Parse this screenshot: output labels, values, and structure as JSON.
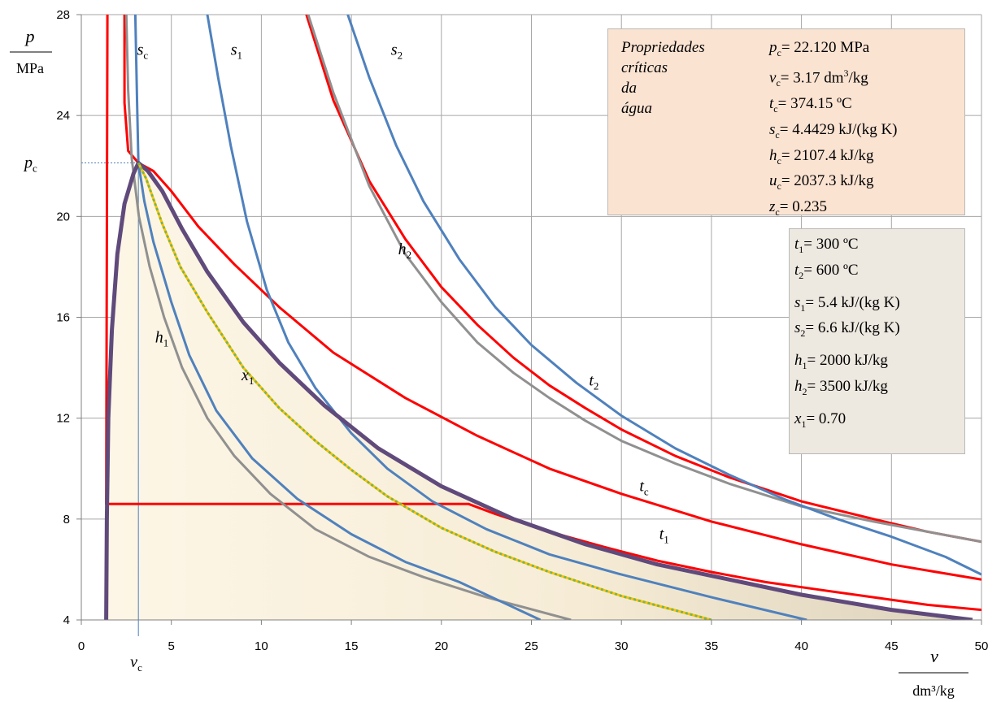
{
  "chart_data": {
    "type": "line",
    "title": "",
    "xaxis": {
      "label": "v",
      "unit": "dm³/kg",
      "range": [
        0,
        50
      ],
      "ticks": [
        "0",
        "5",
        "10",
        "15",
        "20",
        "25",
        "30",
        "35",
        "40",
        "45",
        "50"
      ],
      "extra_tick": "v_c"
    },
    "yaxis": {
      "label": "p",
      "unit": "MPa",
      "range": [
        4,
        28
      ],
      "ticks": [
        "4",
        "8",
        "12",
        "16",
        "20",
        "24",
        "28"
      ],
      "extra_tick": "p_c"
    },
    "grid": true,
    "series": [
      {
        "name": "saturation dome",
        "kind": "dome",
        "color": "#604a7b",
        "x": [
          1.38,
          1.42,
          1.5,
          1.7,
          2.0,
          2.4,
          2.9,
          3.17,
          3.7,
          4.5,
          5.6,
          7,
          9,
          11,
          13.5,
          16.5,
          20,
          24,
          28,
          32,
          36,
          40,
          45,
          49.5
        ],
        "y": [
          4.0,
          8.0,
          12,
          15.5,
          18.5,
          20.5,
          21.7,
          22.12,
          21.8,
          21.0,
          19.5,
          17.8,
          15.8,
          14.2,
          12.5,
          10.8,
          9.3,
          8.0,
          7.0,
          6.2,
          5.6,
          5.0,
          4.4,
          4.0
        ]
      },
      {
        "name": "t1",
        "kind": "isotherm",
        "color": "#ff0000",
        "x": [
          1.45,
          1.4,
          1.38,
          21.5,
          23,
          26,
          29,
          32,
          35,
          38,
          41,
          44,
          47,
          50
        ],
        "y": [
          28,
          14,
          8.6,
          8.6,
          8.2,
          7.5,
          6.9,
          6.35,
          5.9,
          5.5,
          5.2,
          4.9,
          4.6,
          4.4
        ]
      },
      {
        "name": "tc",
        "kind": "isotherm",
        "color": "#ff0000",
        "x": [
          2.4,
          2.4,
          2.6,
          3.17,
          4,
          5,
          6.5,
          8.5,
          11,
          14,
          18,
          22,
          26,
          30,
          35,
          40,
          45,
          50
        ],
        "y": [
          28,
          24.5,
          22.6,
          22.12,
          21.8,
          21.0,
          19.6,
          18.1,
          16.4,
          14.6,
          12.8,
          11.3,
          10.0,
          9.0,
          7.9,
          7.0,
          6.2,
          5.6
        ]
      },
      {
        "name": "t2",
        "kind": "isotherm",
        "color": "#ff0000",
        "x": [
          12.5,
          14,
          16,
          18,
          20,
          22,
          24,
          26,
          28,
          30,
          33,
          36,
          40,
          44,
          47,
          50
        ],
        "y": [
          28,
          24.6,
          21.4,
          19.1,
          17.2,
          15.7,
          14.4,
          13.3,
          12.4,
          11.55,
          10.5,
          9.65,
          8.7,
          8.0,
          7.5,
          7.1
        ]
      },
      {
        "name": "sc",
        "kind": "isentrope",
        "color": "#4f81bd",
        "x": [
          3.0,
          3.1,
          3.17,
          3.5,
          4,
          5,
          6,
          7.5,
          9.5,
          12,
          15,
          18,
          21,
          25.5
        ],
        "y": [
          28,
          24.5,
          22.12,
          20.6,
          19.0,
          16.6,
          14.5,
          12.3,
          10.4,
          8.8,
          7.4,
          6.3,
          5.5,
          4.0
        ]
      },
      {
        "name": "s1",
        "kind": "isentrope",
        "color": "#4f81bd",
        "x": [
          7.0,
          7.6,
          8.3,
          9.2,
          10.3,
          11.5,
          13,
          15,
          17,
          19.5,
          22.5,
          26,
          30,
          35,
          40.3
        ],
        "y": [
          28,
          25.5,
          22.8,
          19.8,
          17.1,
          15.0,
          13.2,
          11.4,
          10.0,
          8.7,
          7.6,
          6.6,
          5.8,
          4.9,
          4.0
        ]
      },
      {
        "name": "s2",
        "kind": "isentrope",
        "color": "#4f81bd",
        "x": [
          14.8,
          16,
          17.5,
          19,
          21,
          23,
          25,
          27.5,
          30,
          33,
          36,
          39,
          42,
          45,
          48,
          50
        ],
        "y": [
          28,
          25.5,
          22.8,
          20.6,
          18.3,
          16.4,
          14.9,
          13.4,
          12.1,
          10.8,
          9.75,
          8.8,
          8.0,
          7.3,
          6.5,
          5.8
        ]
      },
      {
        "name": "h1",
        "kind": "isenthalp",
        "color": "#909090",
        "x": [
          2.5,
          2.6,
          2.8,
          3.2,
          3.8,
          4.6,
          5.6,
          7,
          8.5,
          10.5,
          13,
          16,
          19,
          22.5,
          27.2
        ],
        "y": [
          28,
          25,
          22.3,
          20.0,
          18.0,
          16.0,
          14.0,
          12.0,
          10.5,
          9.0,
          7.6,
          6.5,
          5.7,
          4.9,
          4.0
        ]
      },
      {
        "name": "h2",
        "kind": "isenthalp",
        "color": "#909090",
        "x": [
          12.6,
          14,
          16,
          18,
          20,
          22,
          24,
          26,
          28,
          30,
          33,
          36,
          40,
          44,
          47,
          50
        ],
        "y": [
          28,
          24.9,
          21.2,
          18.5,
          16.6,
          15.0,
          13.8,
          12.8,
          11.9,
          11.1,
          10.2,
          9.4,
          8.5,
          7.9,
          7.5,
          7.1
        ]
      },
      {
        "name": "x1",
        "kind": "quality",
        "color": "#7ab648",
        "x": [
          3.17,
          3.6,
          4.5,
          5.5,
          7,
          9,
          11,
          13,
          15,
          17,
          20,
          23,
          26,
          30,
          35
        ],
        "y": [
          22.12,
          21.5,
          19.7,
          18.0,
          16.2,
          14.0,
          12.4,
          11.1,
          9.95,
          8.9,
          7.65,
          6.7,
          5.9,
          4.95,
          4.0
        ]
      }
    ],
    "curve_labels": [
      {
        "text": "s",
        "sub": "c",
        "x": 3.1,
        "y": 26.4
      },
      {
        "text": "s",
        "sub": "1",
        "x": 8.3,
        "y": 26.4
      },
      {
        "text": "s",
        "sub": "2",
        "x": 17.2,
        "y": 26.4
      },
      {
        "text": "h",
        "sub": "1",
        "x": 4.1,
        "y": 15.0
      },
      {
        "text": "h",
        "sub": "2",
        "x": 17.6,
        "y": 18.5
      },
      {
        "text": "x",
        "sub": "1",
        "x": 8.9,
        "y": 13.5
      },
      {
        "text": "t",
        "sub": "2",
        "x": 28.2,
        "y": 13.3
      },
      {
        "text": "t",
        "sub": "c",
        "x": 31.0,
        "y": 9.1
      },
      {
        "text": "t",
        "sub": "1",
        "x": 32.1,
        "y": 7.2
      }
    ]
  },
  "critical_box": {
    "labels": [
      "Propriedades",
      "críticas",
      "da",
      "água"
    ],
    "rows": [
      {
        "sym": "p",
        "sub": "c",
        "val": "= 22.120 MPa"
      },
      {
        "sym": "v",
        "sub": "c",
        "val": "= 3.17 dm",
        "sup": "3",
        "tail": "/kg"
      },
      {
        "sym": "t",
        "sub": "c",
        "val": "= 374.15 ºC"
      },
      {
        "sym": "s",
        "sub": "c",
        "val": "= 4.4429 kJ/(kg K)"
      },
      {
        "sym": "h",
        "sub": "c",
        "val": "= 2107.4 kJ/kg"
      },
      {
        "sym": "u",
        "sub": "c",
        "val": "= 2037.3 kJ/kg"
      },
      {
        "sym": "z",
        "sub": "c",
        "val": "= 0.235"
      }
    ]
  },
  "state_box": {
    "groups": [
      [
        {
          "sym": "t",
          "sub": "1",
          "val": "= 300 ºC"
        },
        {
          "sym": "t",
          "sub": "2",
          "val": "= 600 ºC"
        }
      ],
      [
        {
          "sym": "s",
          "sub": "1",
          "val": "= 5.4 kJ/(kg K)"
        },
        {
          "sym": "s",
          "sub": "2",
          "val": "= 6.6 kJ/(kg K)"
        }
      ],
      [
        {
          "sym": "h",
          "sub": "1",
          "val": "= 2000 kJ/kg"
        },
        {
          "sym": "h",
          "sub": "2",
          "val": "= 3500 kJ/kg"
        }
      ],
      [
        {
          "sym": "x",
          "sub": "1",
          "val": "= 0.70"
        }
      ]
    ]
  }
}
